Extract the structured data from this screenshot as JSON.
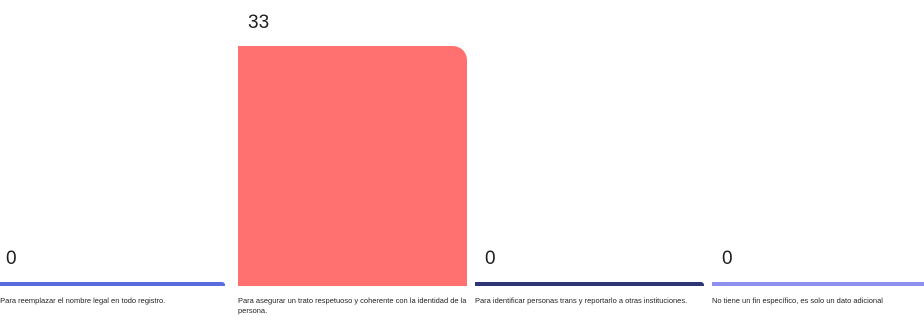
{
  "chart_data": {
    "type": "bar",
    "title": "",
    "xlabel": "",
    "ylabel": "",
    "ylim": [
      0,
      33
    ],
    "grid": false,
    "categories": [
      ". Para reemplazar el nombre legal en todo registro.",
      "Para asegurar un trato respetuoso y coherente con la identidad de la persona.",
      "Para identificar personas trans y reportarlo a otras instituciones.",
      "No tiene un fin específico, es solo un dato adicional"
    ],
    "values": [
      0,
      33,
      0,
      0
    ],
    "colors": [
      "#5b6bde",
      "#ff7070",
      "#2e3574",
      "#8f8ff0"
    ]
  }
}
